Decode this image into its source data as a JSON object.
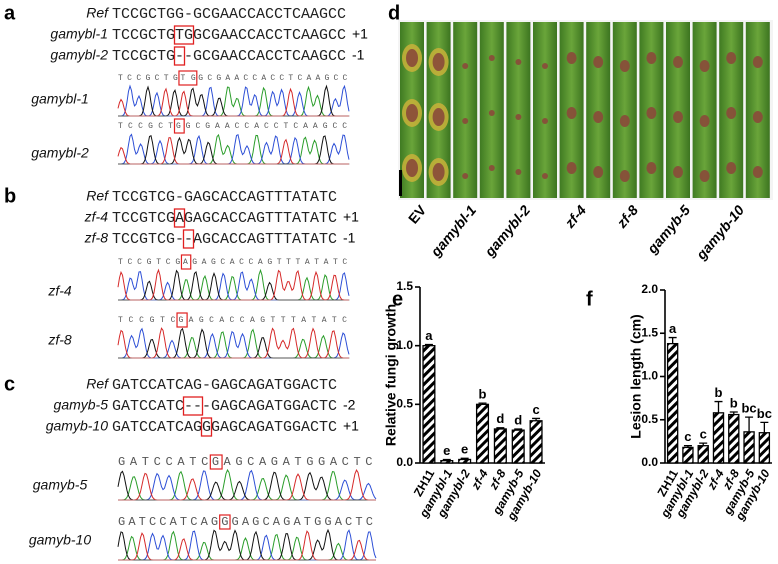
{
  "panel_labels": [
    "a",
    "b",
    "c",
    "d",
    "e",
    "f"
  ],
  "alignments": [
    {
      "rows": [
        {
          "name": "Ref",
          "parts": [
            "TCCGCTGG-GCGAACCACCTCAAGCC"
          ]
        },
        {
          "name": "gamybl-1",
          "parts": [
            "TCCGCTG",
            "TG",
            "GCGAACCACCTCAAGCC"
          ],
          "note": "+1"
        },
        {
          "name": "gamybl-2",
          "parts": [
            "TCCGCTG",
            "-",
            "-GCGAACCACCTCAAGCC"
          ],
          "note": "-1"
        }
      ],
      "traces": [
        {
          "name": "gamybl-1",
          "parts": [
            "TCCGCTG",
            "TG",
            "GCGAACCACCTCAAGCC"
          ]
        },
        {
          "name": "gamybl-2",
          "parts": [
            "TCCGCT",
            "G",
            "GCGAACCACCTCAAGCC"
          ]
        }
      ]
    },
    {
      "rows": [
        {
          "name": "Ref",
          "parts": [
            "TCCGTCG-GAGCACCAGTTTATATC"
          ]
        },
        {
          "name": "zf-4",
          "parts": [
            "TCCGTCG",
            "A",
            "GAGCACCAGTTTATATC"
          ],
          "note": "+1"
        },
        {
          "name": "zf-8",
          "parts": [
            "TCCGTCG-",
            "-",
            "AGCACCAGTTTATATC"
          ],
          "note": "-1"
        }
      ],
      "traces": [
        {
          "name": "zf-4",
          "parts": [
            "TCCGTCG",
            "A",
            "GAGCACCAGTTTATATC"
          ]
        },
        {
          "name": "zf-8",
          "parts": [
            "TCCGTC",
            "G",
            "AGCACCAGTTTATATC"
          ]
        }
      ]
    },
    {
      "rows": [
        {
          "name": "Ref",
          "parts": [
            "GATCCATCAG-GAGCAGATGGACTC"
          ]
        },
        {
          "name": "gamyb-5",
          "parts": [
            "GATCCATC",
            "--",
            "-GAGCAGATGGACTC"
          ],
          "note": "-2"
        },
        {
          "name": "gamyb-10",
          "parts": [
            "GATCCATCAG",
            "G",
            "GAGCAGATGGACTC"
          ],
          "note": "+1"
        }
      ],
      "traces": [
        {
          "name": "gamyb-5",
          "parts": [
            "GATCCATC",
            "G",
            "AGCAGATGGACTC"
          ]
        },
        {
          "name": "gamyb-10",
          "parts": [
            "GATCCATCAG",
            "G",
            "GAGCAGATGGACTC"
          ]
        }
      ]
    }
  ],
  "photo": {
    "lanes": [
      "EV",
      "gamybl-1",
      "gamybl-2",
      "zf-4",
      "zf-8",
      "gamyb-5",
      "gamyb-10"
    ]
  },
  "chart_data": [
    {
      "type": "bar",
      "y_label": "Relative fungi growth",
      "categories": [
        "ZH11",
        "gamybl-1",
        "gamybl-2",
        "zf-4",
        "zf-8",
        "gamyb-5",
        "gamyb-10"
      ],
      "values": [
        1.0,
        0.02,
        0.03,
        0.5,
        0.29,
        0.28,
        0.36
      ],
      "errors": [
        0.01,
        0.01,
        0.01,
        0.01,
        0.01,
        0.01,
        0.02
      ],
      "letters": [
        "a",
        "e",
        "e",
        "b",
        "d",
        "d",
        "c"
      ],
      "color": "#000000",
      "ylim": [
        0,
        1.5
      ],
      "yticks": [
        {
          "value": 0,
          "label": "0.0"
        },
        {
          "value": 0.5,
          "label": "0.5"
        },
        {
          "value": 1,
          "label": "1.0"
        },
        {
          "value": 1.5,
          "label": "1.5"
        }
      ]
    },
    {
      "type": "bar",
      "y_label": "Lesion length (cm)",
      "categories": [
        "ZH11",
        "gamybl-1",
        "gamybl-2",
        "zf-4",
        "zf-8",
        "gamyb-5",
        "gamyb-10"
      ],
      "values": [
        1.38,
        0.18,
        0.2,
        0.58,
        0.56,
        0.36,
        0.35
      ],
      "errors": [
        0.07,
        0.02,
        0.03,
        0.13,
        0.03,
        0.17,
        0.12
      ],
      "letters": [
        "a",
        "c",
        "c",
        "b",
        "b",
        "bc",
        "bc"
      ],
      "color": "#000000",
      "ylim": [
        0,
        2
      ],
      "yticks": [
        {
          "value": 0,
          "label": "0.0"
        },
        {
          "value": 0.5,
          "label": "0.5"
        },
        {
          "value": 1,
          "label": "1.0"
        },
        {
          "value": 1.5,
          "label": "1.5"
        },
        {
          "value": 2,
          "label": "2.0"
        }
      ]
    }
  ]
}
